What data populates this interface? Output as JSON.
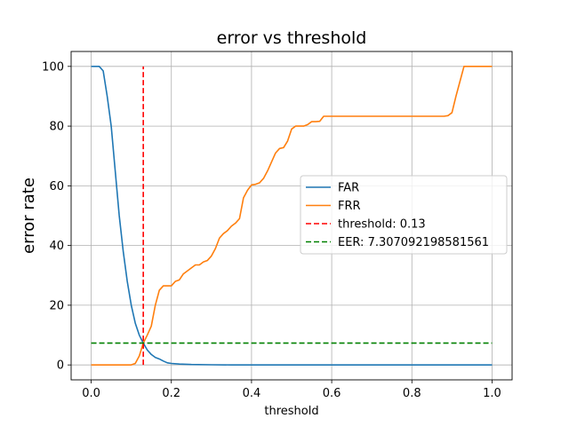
{
  "chart_data": {
    "type": "line",
    "title": "error vs threshold",
    "xlabel": "threshold",
    "ylabel": "error rate",
    "xlim": [
      -0.05,
      1.05
    ],
    "ylim": [
      -5,
      105
    ],
    "xticks": [
      0.0,
      0.2,
      0.4,
      0.6,
      0.8,
      1.0
    ],
    "xtick_labels": [
      "0.0",
      "0.2",
      "0.4",
      "0.6",
      "0.8",
      "1.0"
    ],
    "yticks": [
      0,
      20,
      40,
      60,
      80,
      100
    ],
    "ytick_labels": [
      "0",
      "20",
      "40",
      "60",
      "80",
      "100"
    ],
    "grid": true,
    "legend_position": "center-right",
    "series": [
      {
        "name": "FAR",
        "color": "#1f77b4",
        "style": "solid",
        "x": [
          0.0,
          0.01,
          0.02,
          0.03,
          0.04,
          0.05,
          0.06,
          0.07,
          0.08,
          0.09,
          0.1,
          0.11,
          0.12,
          0.13,
          0.14,
          0.15,
          0.16,
          0.17,
          0.18,
          0.19,
          0.2,
          0.22,
          0.25,
          0.3,
          0.35,
          0.4,
          0.5,
          0.6,
          0.7,
          0.8,
          0.9,
          1.0
        ],
        "y": [
          100,
          100,
          100,
          98.5,
          90,
          80,
          65,
          50,
          38,
          28,
          20,
          14,
          10,
          7.3,
          5.0,
          3.5,
          2.5,
          2.0,
          1.3,
          0.7,
          0.5,
          0.3,
          0.15,
          0.05,
          0,
          0,
          0,
          0,
          0,
          0,
          0,
          0
        ]
      },
      {
        "name": "FRR",
        "color": "#ff7f0e",
        "style": "solid",
        "x": [
          0.0,
          0.05,
          0.1,
          0.11,
          0.12,
          0.13,
          0.14,
          0.15,
          0.16,
          0.17,
          0.18,
          0.2,
          0.21,
          0.22,
          0.23,
          0.25,
          0.26,
          0.27,
          0.28,
          0.29,
          0.3,
          0.31,
          0.32,
          0.33,
          0.34,
          0.35,
          0.36,
          0.37,
          0.38,
          0.39,
          0.4,
          0.41,
          0.42,
          0.43,
          0.44,
          0.45,
          0.46,
          0.47,
          0.48,
          0.49,
          0.5,
          0.51,
          0.52,
          0.53,
          0.54,
          0.55,
          0.56,
          0.57,
          0.58,
          0.6,
          0.7,
          0.8,
          0.88,
          0.89,
          0.9,
          0.91,
          0.92,
          0.93,
          0.95,
          1.0
        ],
        "y": [
          0,
          0,
          0,
          0.5,
          3,
          7.3,
          10,
          13,
          20,
          25,
          26.5,
          26.5,
          28,
          28.5,
          30.5,
          32.5,
          33.5,
          33.5,
          34.5,
          35,
          36.5,
          39,
          42.5,
          44,
          45,
          46.5,
          47.5,
          49,
          56,
          58.5,
          60.3,
          60.5,
          61,
          62.5,
          65,
          68,
          71,
          72.5,
          72.8,
          75,
          79,
          80,
          80,
          80,
          80.5,
          81.5,
          81.5,
          81.6,
          83.3,
          83.3,
          83.3,
          83.3,
          83.3,
          83.5,
          84.5,
          90,
          95,
          100,
          100,
          100
        ]
      },
      {
        "name": "threshold: 0.13",
        "color": "#ff0000",
        "style": "dashed",
        "x": [
          0.13,
          0.13
        ],
        "y": [
          0,
          100
        ]
      },
      {
        "name": "EER: 7.307092198581561",
        "color": "#008000",
        "style": "dashed",
        "x": [
          0.0,
          1.0
        ],
        "y": [
          7.307092198581561,
          7.307092198581561
        ]
      }
    ]
  }
}
